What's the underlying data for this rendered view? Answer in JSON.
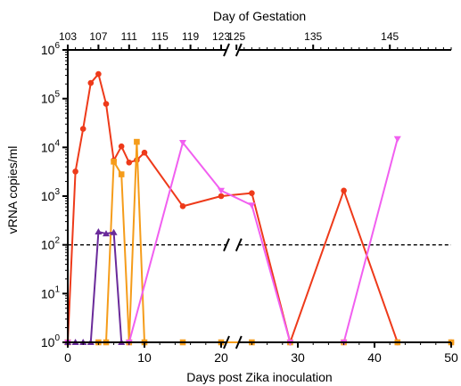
{
  "chart_data": {
    "type": "line",
    "title": "",
    "xlabel": "Days post Zika inoculation",
    "x2label": "Day of Gestation",
    "ylabel": "vRNA copies/ml",
    "yscale": "log",
    "ylim": [
      1,
      1000000
    ],
    "xlim": [
      0,
      50
    ],
    "x_axis_break": [
      20,
      23
    ],
    "grid": false,
    "legend": "none",
    "x_ticks": [
      "0",
      "10",
      "20",
      "30",
      "40",
      "50"
    ],
    "x_tick_values": [
      0,
      10,
      20,
      30,
      40,
      50
    ],
    "gestation_ticks": [
      "103",
      "107",
      "111",
      "115",
      "119",
      "123",
      "125",
      "135",
      "145"
    ],
    "gestation_tick_positions": [
      0,
      4,
      8,
      12,
      16,
      20,
      22,
      32,
      42
    ],
    "y_ticks": [
      {
        "base": "10",
        "exp": "0",
        "value": 1
      },
      {
        "base": "10",
        "exp": "1",
        "value": 10
      },
      {
        "base": "10",
        "exp": "2",
        "value": 100
      },
      {
        "base": "10",
        "exp": "3",
        "value": 1000
      },
      {
        "base": "10",
        "exp": "4",
        "value": 10000
      },
      {
        "base": "10",
        "exp": "5",
        "value": 100000
      },
      {
        "base": "10",
        "exp": "6",
        "value": 1000000
      }
    ],
    "reference_line": {
      "y": 100,
      "style": "dashed"
    },
    "series": [
      {
        "color": "#ee3a1a",
        "marker": "circle",
        "points": [
          [
            0,
            1
          ],
          [
            1,
            3200
          ],
          [
            2,
            24000
          ],
          [
            3,
            210000
          ],
          [
            4,
            320000
          ],
          [
            5,
            78000
          ],
          [
            6,
            5400
          ],
          [
            7,
            10500
          ],
          [
            8,
            4900
          ],
          [
            9,
            5500
          ],
          [
            10,
            7800
          ],
          [
            15,
            620
          ],
          [
            20,
            1000
          ],
          [
            24,
            1150
          ],
          [
            29,
            1
          ],
          [
            36,
            1300
          ],
          [
            43,
            1
          ],
          [
            50,
            1
          ]
        ]
      },
      {
        "color": "#f59c1a",
        "marker": "square",
        "points": [
          [
            0,
            1
          ],
          [
            4,
            1
          ],
          [
            5,
            1
          ],
          [
            6,
            5100
          ],
          [
            7,
            2800
          ],
          [
            8,
            1
          ],
          [
            9,
            13000
          ],
          [
            10,
            1
          ],
          [
            15,
            1
          ],
          [
            20,
            1
          ],
          [
            24,
            1
          ],
          [
            29,
            1
          ],
          [
            36,
            1
          ],
          [
            43,
            1
          ],
          [
            50,
            1
          ]
        ]
      },
      {
        "color": "#f15ff0",
        "marker": "triangle-down",
        "points": [
          [
            0,
            1
          ],
          [
            8,
            1
          ],
          [
            15,
            12500
          ],
          [
            20,
            1300
          ],
          [
            24,
            650
          ],
          [
            29,
            1
          ],
          [
            36,
            1
          ],
          [
            43,
            15000
          ]
        ]
      },
      {
        "color": "#6a2a9a",
        "marker": "triangle-up",
        "points": [
          [
            0,
            1
          ],
          [
            1,
            1
          ],
          [
            2,
            1
          ],
          [
            3,
            1
          ],
          [
            4,
            185
          ],
          [
            5,
            170
          ],
          [
            6,
            180
          ],
          [
            7,
            1
          ]
        ]
      }
    ]
  }
}
